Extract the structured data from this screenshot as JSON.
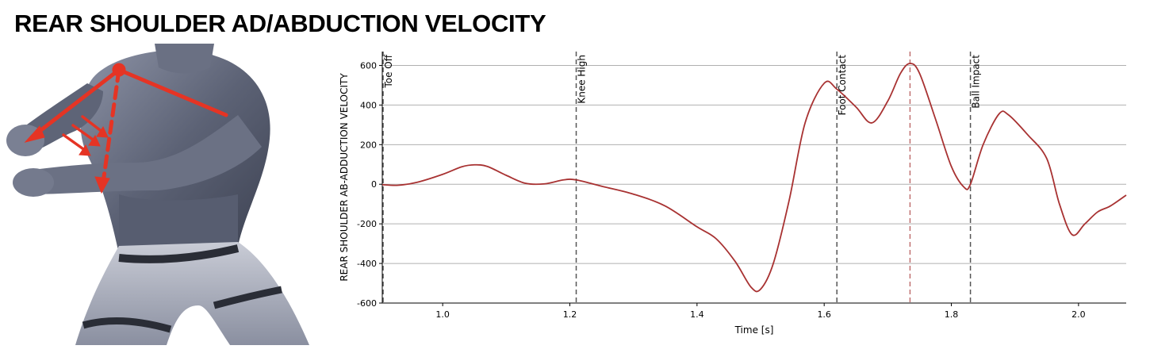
{
  "page": {
    "title": "REAR SHOULDER AD/ABDUCTION VELOCITY"
  },
  "figure": {
    "description_icon": "shoulder-abduction-figure"
  },
  "chart_data": {
    "type": "line",
    "xlabel": "Time [s]",
    "ylabel": "REAR SHOULDER AB-ADDUCTION VELOCITY",
    "xlim": [
      0.905,
      2.075
    ],
    "ylim": [
      -600,
      670
    ],
    "xticks": [
      1.0,
      1.2,
      1.4,
      1.6,
      1.8,
      2.0
    ],
    "xtick_labels": [
      "1.0",
      "1.2",
      "1.4",
      "1.6",
      "1.8",
      "2.0"
    ],
    "yticks": [
      -600,
      -400,
      -200,
      0,
      200,
      400,
      600
    ],
    "ytick_labels": [
      "-600",
      "-400",
      "-200",
      "0",
      "200",
      "400",
      "600"
    ],
    "grid": "horizontal",
    "line_color": "#a83232",
    "events": [
      {
        "label": "Toe Off",
        "x": 0.905,
        "color": "#555555"
      },
      {
        "label": "Knee High",
        "x": 1.21,
        "color": "#555555"
      },
      {
        "label": "Foot Contact",
        "x": 1.62,
        "color": "#555555"
      },
      {
        "label": "",
        "x": 1.735,
        "color": "#c07070"
      },
      {
        "label": "Ball Impact",
        "x": 1.83,
        "color": "#555555"
      }
    ],
    "series": [
      {
        "name": "",
        "points": [
          [
            0.905,
            -2
          ],
          [
            0.93,
            -5
          ],
          [
            0.96,
            10
          ],
          [
            1.0,
            50
          ],
          [
            1.03,
            88
          ],
          [
            1.05,
            98
          ],
          [
            1.07,
            90
          ],
          [
            1.1,
            45
          ],
          [
            1.13,
            5
          ],
          [
            1.16,
            2
          ],
          [
            1.19,
            22
          ],
          [
            1.21,
            22
          ],
          [
            1.25,
            -10
          ],
          [
            1.3,
            -50
          ],
          [
            1.35,
            -110
          ],
          [
            1.4,
            -215
          ],
          [
            1.43,
            -275
          ],
          [
            1.46,
            -390
          ],
          [
            1.485,
            -520
          ],
          [
            1.5,
            -530
          ],
          [
            1.52,
            -400
          ],
          [
            1.545,
            -80
          ],
          [
            1.57,
            310
          ],
          [
            1.6,
            510
          ],
          [
            1.62,
            480
          ],
          [
            1.65,
            390
          ],
          [
            1.675,
            310
          ],
          [
            1.7,
            420
          ],
          [
            1.72,
            560
          ],
          [
            1.735,
            610
          ],
          [
            1.75,
            560
          ],
          [
            1.775,
            330
          ],
          [
            1.8,
            90
          ],
          [
            1.82,
            -15
          ],
          [
            1.83,
            0
          ],
          [
            1.85,
            200
          ],
          [
            1.875,
            355
          ],
          [
            1.89,
            350
          ],
          [
            1.92,
            250
          ],
          [
            1.95,
            130
          ],
          [
            1.97,
            -100
          ],
          [
            1.99,
            -255
          ],
          [
            2.01,
            -200
          ],
          [
            2.03,
            -140
          ],
          [
            2.05,
            -110
          ],
          [
            2.075,
            -55
          ]
        ]
      }
    ]
  }
}
